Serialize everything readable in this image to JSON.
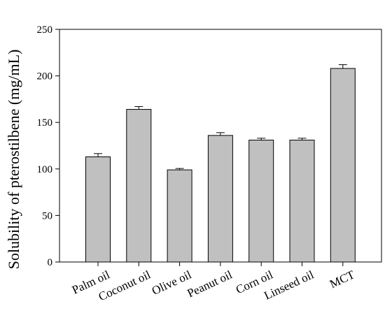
{
  "chart_data": {
    "type": "bar",
    "categories": [
      "Palm oil",
      "Coconut oil",
      "Olive oil",
      "Peanut oil",
      "Corn oil",
      "Linseed oil",
      "MCT"
    ],
    "values": [
      113,
      164,
      99,
      136,
      131,
      131,
      208
    ],
    "errors": [
      3.5,
      3,
      1.5,
      3,
      2,
      2,
      4
    ],
    "title": "",
    "xlabel": "",
    "ylabel": "Solubility of pterostilbene (mg/mL)",
    "ylim": [
      0,
      250
    ],
    "yticks": [
      "0",
      "50",
      "100",
      "150",
      "200",
      "250"
    ],
    "grid": false,
    "bar_color": "#c0c0c0"
  }
}
